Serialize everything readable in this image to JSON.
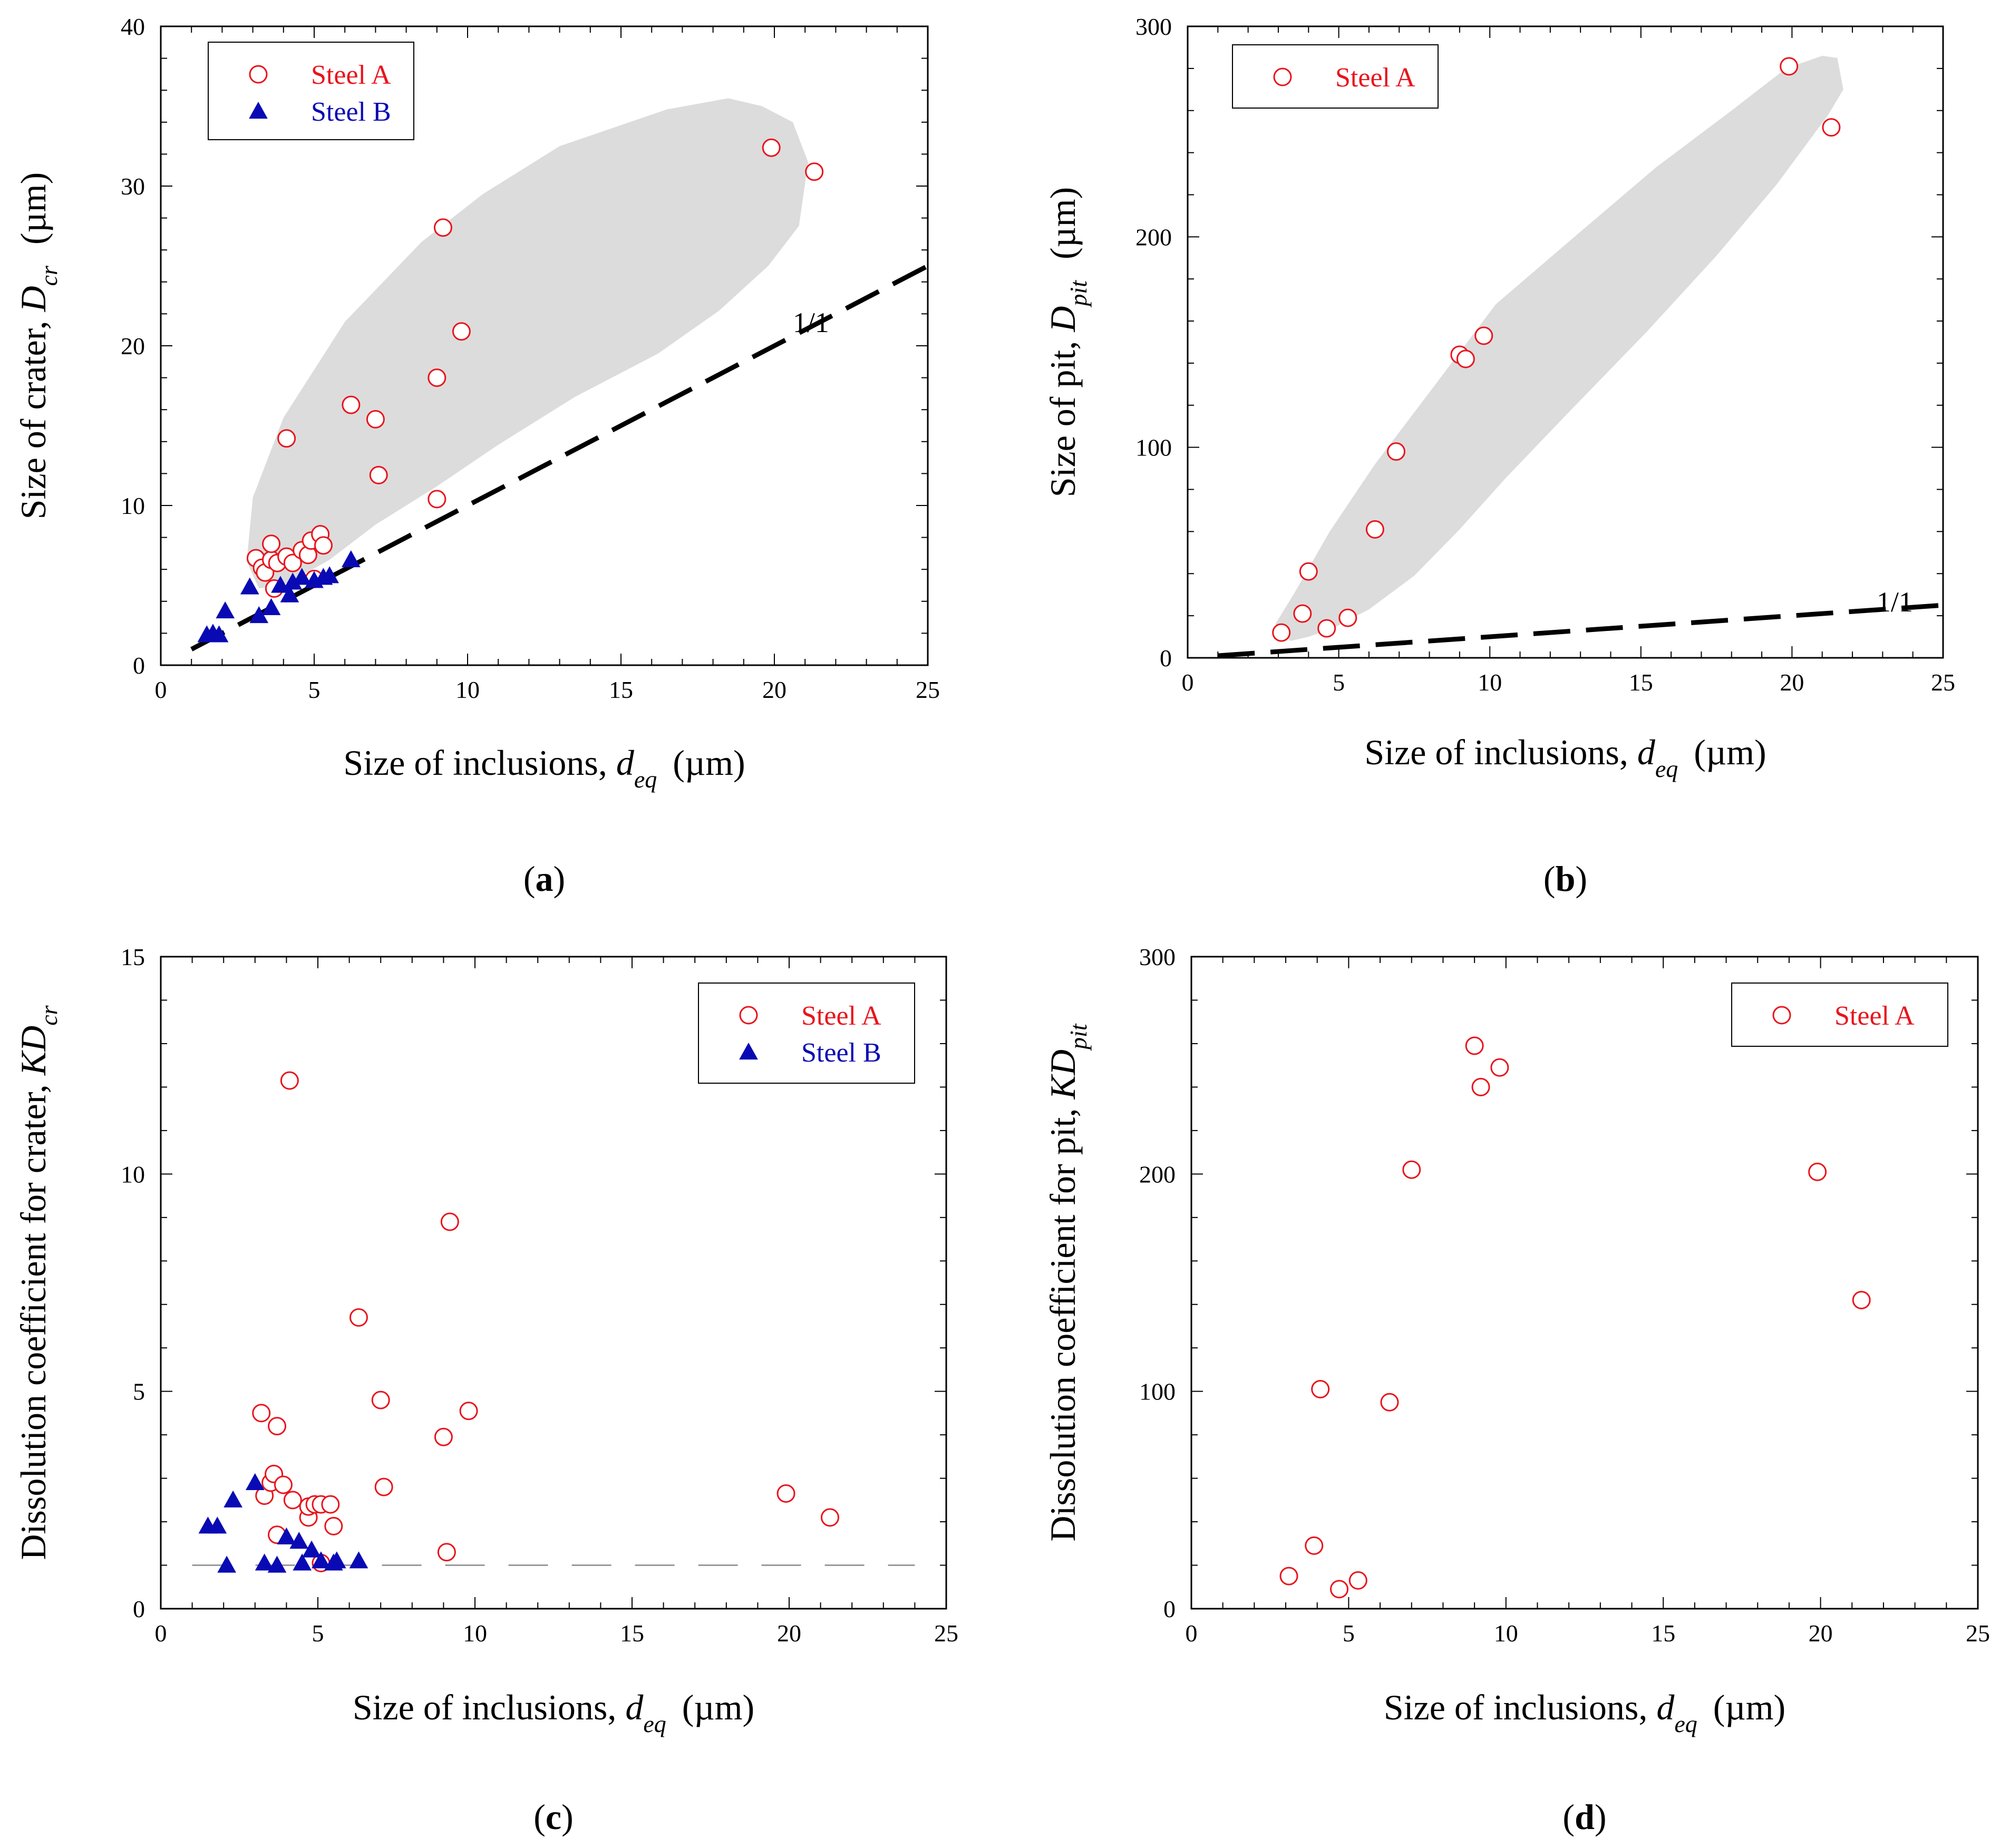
{
  "colors": {
    "steel_a": "#e8141c",
    "steel_b": "#0a0ab4",
    "region": "#dcdcdc",
    "axis": "#000000",
    "refline": "#000000",
    "refline_light": "#9a9a9a"
  },
  "chart_data": [
    {
      "id": "a",
      "type": "scatter",
      "caption": "(a)",
      "caption_parts": {
        "open": "(",
        "letter": "a",
        "close": ")"
      },
      "xlabel": {
        "main": "Size of inclusions, ",
        "var": "d",
        "sub": "eq",
        "unit": "(µm)"
      },
      "ylabel": {
        "main": "Size of crater, ",
        "var": "D",
        "sub": "cr",
        "unit": "(µm)"
      },
      "xlim": [
        0,
        25
      ],
      "ylim": [
        0,
        40
      ],
      "xticks": [
        0,
        5,
        10,
        15,
        20,
        25
      ],
      "yticks": [
        0,
        10,
        20,
        30,
        40
      ],
      "xtick_labels": [
        "0",
        "5",
        "10",
        "15",
        "20",
        "25"
      ],
      "ytick_labels": [
        "0",
        "10",
        "20",
        "30",
        "40"
      ],
      "legend_position": "top-left",
      "shaded_region": [
        [
          2.8,
          6.5
        ],
        [
          3.0,
          10.5
        ],
        [
          4.0,
          15.5
        ],
        [
          6.0,
          21.5
        ],
        [
          8.5,
          26.5
        ],
        [
          10.5,
          29.5
        ],
        [
          13.0,
          32.5
        ],
        [
          16.5,
          34.8
        ],
        [
          18.5,
          35.5
        ],
        [
          19.6,
          35.0
        ],
        [
          20.6,
          34.0
        ],
        [
          21.1,
          31.5
        ],
        [
          20.8,
          27.5
        ],
        [
          19.8,
          25.0
        ],
        [
          18.2,
          22.2
        ],
        [
          16.2,
          19.5
        ],
        [
          13.5,
          16.8
        ],
        [
          11.0,
          13.8
        ],
        [
          9.0,
          11.2
        ],
        [
          7.0,
          8.8
        ],
        [
          5.5,
          6.6
        ],
        [
          4.2,
          5.2
        ],
        [
          3.2,
          4.8
        ],
        [
          2.8,
          6.5
        ]
      ],
      "reference_line": {
        "label": "1/1",
        "style": "dashed",
        "x": [
          1.0,
          25.0
        ],
        "y": [
          1.0,
          25.0
        ],
        "label_at": [
          20.6,
          20.6
        ]
      },
      "series": [
        {
          "name": "Steel A",
          "marker": "open-circle",
          "x": [
            3.1,
            3.3,
            3.4,
            3.6,
            3.6,
            3.7,
            3.8,
            4.1,
            4.1,
            4.3,
            4.6,
            4.8,
            4.9,
            5.0,
            5.2,
            5.3,
            6.2,
            7.0,
            7.1,
            9.0,
            9.0,
            9.2,
            9.8,
            19.9,
            21.3
          ],
          "y": [
            6.7,
            6.1,
            5.8,
            6.6,
            7.6,
            4.8,
            6.4,
            14.2,
            6.8,
            6.4,
            7.2,
            6.9,
            7.8,
            5.4,
            8.2,
            7.5,
            16.3,
            15.4,
            11.9,
            18.0,
            10.4,
            27.4,
            20.9,
            32.4,
            30.9
          ]
        },
        {
          "name": "Steel B",
          "marker": "filled-triangle",
          "x": [
            1.5,
            1.7,
            1.9,
            2.1,
            2.9,
            3.2,
            3.6,
            3.9,
            4.2,
            4.3,
            4.6,
            5.0,
            5.3,
            5.5,
            6.2
          ],
          "y": [
            1.9,
            2.0,
            1.9,
            3.4,
            4.9,
            3.1,
            3.6,
            5.0,
            4.4,
            5.2,
            5.5,
            5.3,
            5.5,
            5.6,
            6.6
          ]
        }
      ]
    },
    {
      "id": "b",
      "type": "scatter",
      "caption": "(b)",
      "caption_parts": {
        "open": "(",
        "letter": "b",
        "close": ")"
      },
      "xlabel": {
        "main": "Size of inclusions, ",
        "var": "d",
        "sub": "eq",
        "unit": "(µm)"
      },
      "ylabel": {
        "main": "Size of pit, ",
        "var": "D",
        "sub": "pit",
        "unit": "(µm)"
      },
      "xlim": [
        0,
        25
      ],
      "ylim": [
        0,
        300
      ],
      "xticks": [
        0,
        5,
        10,
        15,
        20,
        25
      ],
      "yticks": [
        0,
        100,
        200,
        300
      ],
      "xtick_labels": [
        "0",
        "5",
        "10",
        "15",
        "20",
        "25"
      ],
      "ytick_labels": [
        "0",
        "100",
        "200",
        "300"
      ],
      "legend_position": "top-left",
      "shaded_region": [
        [
          2.9,
          16.0
        ],
        [
          3.5,
          30.0
        ],
        [
          4.7,
          60.0
        ],
        [
          6.2,
          92.0
        ],
        [
          8.1,
          128.0
        ],
        [
          10.2,
          168.0
        ],
        [
          12.8,
          200.0
        ],
        [
          15.5,
          233.0
        ],
        [
          18.0,
          260.0
        ],
        [
          19.8,
          280.0
        ],
        [
          21.0,
          286.0
        ],
        [
          21.5,
          285.0
        ],
        [
          21.7,
          270.0
        ],
        [
          21.2,
          258.0
        ],
        [
          19.5,
          225.0
        ],
        [
          17.5,
          191.0
        ],
        [
          15.2,
          155.0
        ],
        [
          12.5,
          115.0
        ],
        [
          10.5,
          85.0
        ],
        [
          9.0,
          61.0
        ],
        [
          7.5,
          39.0
        ],
        [
          6.0,
          23.0
        ],
        [
          4.8,
          14.0
        ],
        [
          4.0,
          10.0
        ],
        [
          3.4,
          8.0
        ],
        [
          2.9,
          16.0
        ]
      ],
      "reference_line": {
        "label": "1/1",
        "style": "dashed",
        "x": [
          1.0,
          25.0
        ],
        "y": [
          1.0,
          25.0
        ],
        "label_at": [
          22.8,
          20.0
        ]
      },
      "series": [
        {
          "name": "Steel A",
          "marker": "open-circle",
          "x": [
            3.1,
            3.8,
            4.0,
            4.6,
            5.3,
            6.2,
            6.9,
            9.0,
            9.2,
            9.8,
            19.9,
            21.3
          ],
          "y": [
            12.0,
            21.0,
            41.0,
            14.0,
            19.0,
            61.0,
            98.0,
            144.0,
            142.0,
            153.0,
            281.0,
            252.0
          ]
        }
      ]
    },
    {
      "id": "c",
      "type": "scatter",
      "caption": "(c)",
      "caption_parts": {
        "open": "(",
        "letter": "c",
        "close": ")"
      },
      "xlabel": {
        "main": "Size of inclusions, ",
        "var": "d",
        "sub": "eq",
        "unit": "(µm)"
      },
      "ylabel": {
        "main": "Dissolution coefficient for crater, ",
        "var": "KD",
        "sub": "cr",
        "unit": ""
      },
      "xlim": [
        0,
        25
      ],
      "ylim": [
        0,
        15
      ],
      "xticks": [
        0,
        5,
        10,
        15,
        20,
        25
      ],
      "yticks": [
        0,
        5,
        10,
        15
      ],
      "xtick_labels": [
        "0",
        "5",
        "10",
        "15",
        "20",
        "25"
      ],
      "ytick_labels": [
        "0",
        "5",
        "10",
        "15"
      ],
      "legend_position": "top-right",
      "reference_line": {
        "label": "",
        "style": "dashed-light",
        "x": [
          1.0,
          24.0
        ],
        "y": [
          1.0,
          1.0
        ]
      },
      "series": [
        {
          "name": "Steel A",
          "marker": "open-circle",
          "x": [
            3.2,
            3.3,
            3.5,
            3.6,
            3.7,
            3.7,
            3.9,
            4.1,
            4.2,
            4.7,
            4.7,
            4.9,
            5.1,
            5.4,
            5.5,
            6.3,
            7.0,
            7.1,
            9.0,
            9.1,
            9.2,
            9.8,
            19.9,
            21.3,
            5.1
          ],
          "y": [
            4.5,
            2.6,
            2.9,
            3.1,
            1.7,
            4.2,
            2.85,
            12.15,
            2.5,
            2.1,
            2.35,
            2.4,
            2.4,
            2.4,
            1.9,
            6.7,
            4.8,
            2.8,
            3.95,
            1.3,
            8.9,
            4.55,
            2.65,
            2.1,
            1.05
          ]
        },
        {
          "name": "Steel B",
          "marker": "filled-triangle",
          "x": [
            1.5,
            1.8,
            2.1,
            2.3,
            3.0,
            3.3,
            3.7,
            4.0,
            4.4,
            4.5,
            4.8,
            5.1,
            5.5,
            5.6,
            6.3
          ],
          "y": [
            1.9,
            1.9,
            1.0,
            2.5,
            2.9,
            1.05,
            1.0,
            1.65,
            1.55,
            1.05,
            1.35,
            1.1,
            1.05,
            1.1,
            1.1
          ]
        }
      ]
    },
    {
      "id": "d",
      "type": "scatter",
      "caption": "(d)",
      "caption_parts": {
        "open": "(",
        "letter": "d",
        "close": ")"
      },
      "xlabel": {
        "main": "Size of inclusions, ",
        "var": "d",
        "sub": "eq",
        "unit": "(µm)"
      },
      "ylabel": {
        "main": "Dissolution coefficient for pit, ",
        "var": "KD",
        "sub": "pit",
        "unit": ""
      },
      "xlim": [
        0,
        25
      ],
      "ylim": [
        0,
        300
      ],
      "xticks": [
        0,
        5,
        10,
        15,
        20,
        25
      ],
      "yticks": [
        0,
        100,
        200,
        300
      ],
      "xtick_labels": [
        "0",
        "5",
        "10",
        "15",
        "20",
        "25"
      ],
      "ytick_labels": [
        "0",
        "100",
        "200",
        "300"
      ],
      "legend_position": "top-right",
      "series": [
        {
          "name": "Steel A",
          "marker": "open-circle",
          "x": [
            3.1,
            3.9,
            4.1,
            4.7,
            5.3,
            6.3,
            7.0,
            9.0,
            9.2,
            9.8,
            19.9,
            21.3
          ],
          "y": [
            15.0,
            29.0,
            101.0,
            9.0,
            13.0,
            95.0,
            202.0,
            259.0,
            240.0,
            249.0,
            201.0,
            142.0
          ]
        }
      ]
    }
  ]
}
